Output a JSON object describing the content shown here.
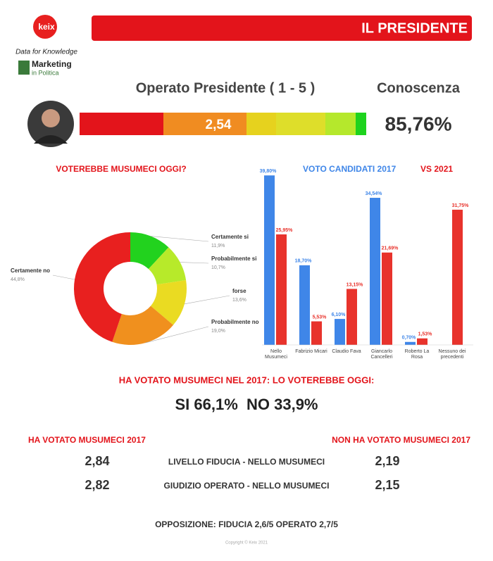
{
  "header": {
    "logo": "keix",
    "tagline": "Data for Knowledge",
    "brand": "Marketing",
    "brand_sub": "in Politica",
    "title": "IL PRESIDENTE"
  },
  "gauge": {
    "label": "Operato Presidente ( 1 - 5 )",
    "value": "2,54",
    "knowledge_label": "Conoscenza",
    "knowledge_value": "85,76%"
  },
  "chart_data": [
    {
      "type": "pie",
      "title": "VOTEREBBE MUSUMECI OGGI?",
      "categories": [
        "Certamente si",
        "Probabilmente si",
        "forse",
        "Probabilmente no",
        "Certamente no"
      ],
      "values": [
        11.9,
        10.7,
        13.6,
        19.0,
        44.8
      ],
      "value_labels": [
        "11,9%",
        "10,7%",
        "13,6%",
        "19,0%",
        "44,8%"
      ],
      "colors": [
        "#22d21e",
        "#b7ea2a",
        "#eadb22",
        "#f0901e",
        "#e8201f"
      ]
    },
    {
      "type": "bar",
      "title": [
        "VOTO CANDIDATI 2017",
        "VS  2021"
      ],
      "categories": [
        "Nello Musumeci",
        "Fabrizio Micari",
        "Claudio Fava",
        "Giancarlo Cancelleri",
        "Roberto La Rosa",
        "Nessuno dei precedenti"
      ],
      "series": [
        {
          "name": "2017",
          "color": "#3f86e8",
          "values": [
            39.8,
            18.7,
            6.1,
            34.54,
            0.7,
            null
          ],
          "value_labels": [
            "39,80%",
            "18,70%",
            "6,10%",
            "34,54%",
            "0,70%",
            null
          ]
        },
        {
          "name": "2021",
          "color": "#e8332c",
          "values": [
            25.95,
            5.53,
            13.15,
            21.69,
            1.53,
            31.75
          ],
          "value_labels": [
            "25,95%",
            "5,53%",
            "13,15%",
            "21,69%",
            "1,53%",
            "31,75%"
          ]
        }
      ],
      "ylim": [
        0,
        40
      ]
    }
  ],
  "summary": {
    "question": "HA VOTATO MUSUMECI NEL 2017: LO VOTEREBBE OGGI:",
    "answer": "SI 66,1%  NO 33,9%"
  },
  "table": {
    "headers": [
      "HA VOTATO MUSUMECI 2017",
      "NON HA VOTATO MUSUMECI 2017"
    ],
    "rows": [
      [
        "2,84",
        "LIVELLO FIDUCIA - NELLO MUSUMECI",
        "2,19"
      ],
      [
        "2,82",
        "GIUDIZIO OPERATO - NELLO MUSUMECI",
        "2,15"
      ]
    ]
  },
  "footer": {
    "opposition": "OPPOSIZIONE: FIDUCIA 2,6/5 OPERATO 2,7/5",
    "copyright": "Copyright © Keix 2021"
  }
}
